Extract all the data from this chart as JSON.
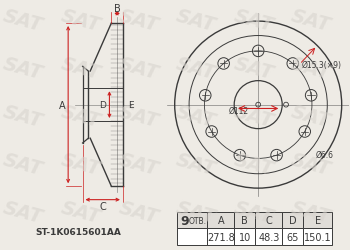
{
  "bg_color": "#eeebe5",
  "line_color": "#3a3a3a",
  "red_color": "#cc2222",
  "table_bg": "#ffffff",
  "table_header_bg": "#e0ddd8",
  "part_number": "ST-1K0615601AA",
  "holes_label_num": "9",
  "holes_label_txt": " ОТВ.",
  "dim_labels": [
    "A",
    "B",
    "C",
    "D",
    "E"
  ],
  "dim_values": [
    "271.8",
    "10",
    "48.3",
    "65",
    "150.1"
  ],
  "ann_d1": "Ø15.3(×9)",
  "ann_d2": "Ø112",
  "ann_d3": "Ø6.6",
  "wm_color": "#d8d4ce",
  "wm_alpha": 0.6,
  "wm_text": "SAT"
}
